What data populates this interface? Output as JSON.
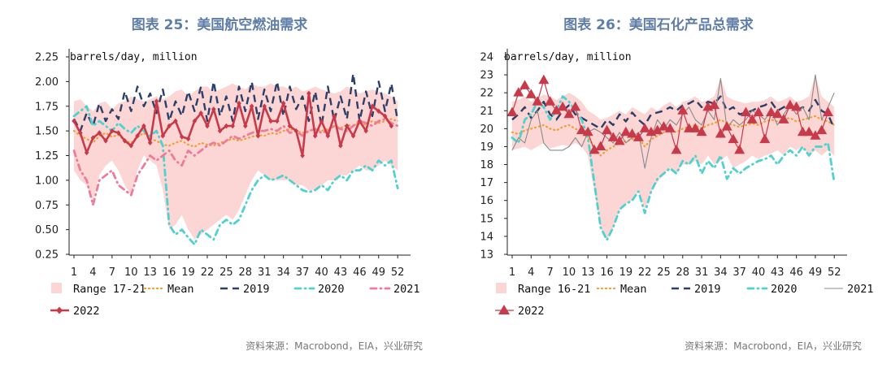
{
  "chart_data": [
    {
      "type": "line",
      "title": "图表 25：美国航空燃油需求",
      "ylabel": "barrels/day, million",
      "source": "资料来源：Macrobond，EIA，兴业研究",
      "ylim": [
        0.25,
        2.25
      ],
      "yticks": [
        "0.25",
        "0.50",
        "0.75",
        "1.00",
        "1.25",
        "1.50",
        "1.75",
        "2.00",
        "2.25"
      ],
      "yticks_values": [
        0.25,
        0.5,
        0.75,
        1.0,
        1.25,
        1.5,
        1.75,
        2.0,
        2.25
      ],
      "xticks": [
        1,
        4,
        7,
        10,
        13,
        16,
        19,
        22,
        25,
        28,
        31,
        34,
        37,
        40,
        43,
        46,
        49,
        52
      ],
      "xlim": [
        1,
        53
      ],
      "x": [
        1,
        2,
        3,
        4,
        5,
        6,
        7,
        8,
        9,
        10,
        11,
        12,
        13,
        14,
        15,
        16,
        17,
        18,
        19,
        20,
        21,
        22,
        23,
        24,
        25,
        26,
        27,
        28,
        29,
        30,
        31,
        32,
        33,
        34,
        35,
        36,
        37,
        38,
        39,
        40,
        41,
        42,
        43,
        44,
        45,
        46,
        47,
        48,
        49,
        50,
        51,
        52
      ],
      "range_label": "Range 17-21",
      "range_low": [
        1.1,
        1.0,
        0.95,
        0.8,
        1.05,
        1.15,
        1.2,
        1.1,
        0.95,
        0.85,
        1.1,
        1.25,
        1.2,
        1.15,
        0.9,
        0.5,
        0.55,
        0.65,
        0.5,
        0.4,
        0.45,
        0.5,
        0.55,
        0.6,
        0.65,
        0.6,
        0.7,
        0.85,
        1.0,
        1.1,
        1.05,
        1.0,
        1.0,
        1.0,
        1.0,
        0.95,
        0.95,
        0.9,
        0.9,
        0.95,
        1.0,
        1.0,
        1.05,
        1.05,
        1.1,
        1.15,
        1.1,
        1.1,
        1.15,
        1.2,
        1.15,
        1.1
      ],
      "range_high": [
        1.8,
        1.82,
        1.75,
        1.7,
        1.78,
        1.8,
        1.72,
        1.78,
        1.8,
        1.85,
        1.82,
        1.8,
        1.82,
        1.85,
        1.82,
        1.85,
        1.9,
        1.92,
        1.85,
        1.9,
        1.95,
        1.95,
        1.9,
        1.92,
        1.95,
        1.98,
        1.95,
        1.92,
        1.98,
        1.95,
        1.95,
        1.98,
        1.95,
        1.95,
        1.92,
        1.95,
        1.9,
        1.92,
        1.95,
        1.92,
        1.9,
        1.88,
        1.9,
        1.95,
        1.92,
        1.88,
        1.9,
        1.92,
        1.9,
        1.88,
        1.85,
        1.8
      ],
      "series": [
        {
          "name": "Mean",
          "color": "#f0a030",
          "style": "dotted-fine",
          "values": [
            1.5,
            1.45,
            1.42,
            1.38,
            1.45,
            1.48,
            1.44,
            1.46,
            1.4,
            1.38,
            1.44,
            1.48,
            1.42,
            1.4,
            1.36,
            1.35,
            1.38,
            1.4,
            1.36,
            1.34,
            1.38,
            1.36,
            1.35,
            1.38,
            1.4,
            1.42,
            1.4,
            1.42,
            1.44,
            1.46,
            1.45,
            1.48,
            1.47,
            1.5,
            1.52,
            1.5,
            1.48,
            1.5,
            1.52,
            1.5,
            1.52,
            1.55,
            1.53,
            1.56,
            1.55,
            1.58,
            1.56,
            1.6,
            1.58,
            1.6,
            1.62,
            1.6
          ]
        },
        {
          "name": "2019",
          "color": "#2c3e6a",
          "style": "dashed",
          "values": [
            1.62,
            1.5,
            1.68,
            1.55,
            1.78,
            1.6,
            1.72,
            1.62,
            1.9,
            1.7,
            1.95,
            1.75,
            1.88,
            1.68,
            1.92,
            1.6,
            1.8,
            1.65,
            1.9,
            1.7,
            1.95,
            1.6,
            2.0,
            1.65,
            1.85,
            1.6,
            1.95,
            1.7,
            2.0,
            1.62,
            1.92,
            1.7,
            2.0,
            1.65,
            1.95,
            1.72,
            1.85,
            1.6,
            1.9,
            1.55,
            1.95,
            1.6,
            1.85,
            1.62,
            2.08,
            1.6,
            1.9,
            1.65,
            2.0,
            1.7,
            1.98,
            1.6
          ]
        },
        {
          "name": "2020",
          "color": "#4fd1d0",
          "style": "dashdot",
          "values": [
            1.65,
            1.7,
            1.75,
            1.55,
            1.6,
            1.55,
            1.5,
            1.58,
            1.52,
            1.48,
            1.55,
            1.5,
            1.45,
            1.5,
            1.35,
            0.55,
            0.45,
            0.5,
            0.42,
            0.35,
            0.5,
            0.45,
            0.4,
            0.55,
            0.6,
            0.55,
            0.6,
            0.75,
            0.9,
            1.0,
            1.05,
            1.0,
            1.02,
            1.05,
            1.0,
            0.95,
            0.9,
            0.88,
            0.9,
            0.95,
            0.9,
            1.0,
            1.05,
            1.0,
            1.1,
            1.1,
            1.15,
            1.1,
            1.2,
            1.15,
            1.2,
            0.92
          ]
        },
        {
          "name": "2021",
          "color": "#f07a9a",
          "style": "dashdot",
          "values": [
            1.3,
            1.1,
            1.0,
            0.75,
            1.0,
            1.05,
            1.1,
            0.95,
            0.9,
            0.85,
            1.05,
            1.15,
            1.25,
            1.2,
            1.25,
            1.3,
            1.2,
            1.15,
            1.3,
            1.25,
            1.3,
            1.35,
            1.38,
            1.35,
            1.4,
            1.45,
            1.42,
            1.45,
            1.48,
            1.5,
            1.5,
            1.52,
            1.5,
            1.55,
            1.48,
            1.5,
            1.45,
            1.5,
            1.52,
            1.48,
            1.5,
            1.55,
            1.52,
            1.5,
            1.55,
            1.6,
            1.58,
            1.55,
            1.6,
            1.62,
            1.58,
            1.55
          ]
        },
        {
          "name": "2022",
          "color": "#c8394a",
          "style": "solid-marker",
          "values": [
            1.6,
            1.48,
            1.28,
            1.43,
            1.48,
            1.4,
            1.5,
            1.48,
            1.4,
            1.35,
            1.45,
            1.55,
            1.38,
            1.8,
            1.45,
            1.55,
            1.6,
            1.44,
            1.42,
            1.6,
            1.68,
            1.55,
            1.72,
            1.5,
            1.55,
            1.55,
            1.78,
            1.55,
            1.75,
            1.45,
            1.75,
            1.6,
            1.6,
            1.78,
            1.55,
            1.5,
            1.25,
            1.88,
            1.45,
            1.6,
            1.45,
            1.65,
            1.35,
            1.55,
            1.45,
            1.6,
            1.5,
            1.75,
            1.7,
            1.65,
            1.55,
            null
          ]
        }
      ],
      "legend": [
        "Range 17-21",
        "Mean",
        "2019",
        "2020",
        "2021",
        "2022"
      ]
    },
    {
      "type": "line",
      "title": "图表 26：美国石化产品总需求",
      "ylabel": "barrels/day, million",
      "source": "资料来源：Macrobond，EIA，兴业研究",
      "ylim": [
        13,
        24
      ],
      "yticks": [
        "13",
        "14",
        "15",
        "16",
        "17",
        "18",
        "19",
        "20",
        "21",
        "22",
        "23",
        "24"
      ],
      "yticks_values": [
        13,
        14,
        15,
        16,
        17,
        18,
        19,
        20,
        21,
        22,
        23,
        24
      ],
      "xticks": [
        1,
        4,
        7,
        10,
        13,
        16,
        19,
        22,
        25,
        28,
        31,
        34,
        37,
        40,
        43,
        46,
        49,
        52
      ],
      "xlim": [
        1,
        53
      ],
      "x": [
        1,
        2,
        3,
        4,
        5,
        6,
        7,
        8,
        9,
        10,
        11,
        12,
        13,
        14,
        15,
        16,
        17,
        18,
        19,
        20,
        21,
        22,
        23,
        24,
        25,
        26,
        27,
        28,
        29,
        30,
        31,
        32,
        33,
        34,
        35,
        36,
        37,
        38,
        39,
        40,
        41,
        42,
        43,
        44,
        45,
        46,
        47,
        48,
        49,
        50,
        51,
        52
      ],
      "range_label": "Range 16-21",
      "range_low": [
        18.8,
        18.9,
        19.0,
        18.8,
        19.0,
        19.2,
        18.9,
        19.0,
        19.1,
        19.0,
        19.2,
        19.0,
        18.5,
        16.5,
        14.5,
        13.8,
        14.5,
        15.5,
        15.8,
        16.0,
        16.5,
        15.5,
        16.5,
        17.0,
        17.5,
        17.8,
        17.5,
        18.0,
        18.0,
        18.2,
        18.0,
        18.5,
        18.0,
        18.2,
        18.5,
        17.8,
        18.0,
        18.2,
        18.5,
        18.3,
        18.5,
        18.6,
        18.8,
        18.5,
        19.0,
        18.8,
        19.0,
        18.5,
        18.8,
        18.5,
        18.8,
        18.5
      ],
      "range_high": [
        21.5,
        21.6,
        21.8,
        21.5,
        21.7,
        21.9,
        21.8,
        21.6,
        21.8,
        22.0,
        21.8,
        21.5,
        21.0,
        20.8,
        20.5,
        20.6,
        20.8,
        21.0,
        20.8,
        21.2,
        21.0,
        20.8,
        21.2,
        21.0,
        21.3,
        21.5,
        21.2,
        21.5,
        21.6,
        21.8,
        21.5,
        21.6,
        21.8,
        22.8,
        21.8,
        21.6,
        21.5,
        21.4,
        21.5,
        21.5,
        21.6,
        21.8,
        21.5,
        21.6,
        21.8,
        21.5,
        21.6,
        21.8,
        23.0,
        21.8,
        21.5,
        21.2
      ],
      "series": [
        {
          "name": "Mean",
          "color": "#f0a030",
          "style": "dotted-fine",
          "values": [
            19.8,
            19.7,
            19.9,
            20.0,
            20.1,
            20.2,
            20.0,
            19.9,
            20.1,
            20.2,
            20.0,
            19.8,
            19.5,
            19.0,
            18.5,
            18.8,
            19.0,
            19.2,
            19.3,
            19.4,
            19.5,
            19.0,
            19.4,
            19.6,
            19.8,
            19.9,
            19.8,
            20.0,
            20.1,
            20.2,
            20.0,
            20.2,
            20.3,
            20.5,
            20.3,
            20.2,
            20.1,
            20.2,
            20.3,
            20.2,
            20.4,
            20.5,
            20.4,
            20.5,
            20.6,
            20.4,
            20.5,
            20.6,
            20.7,
            20.5,
            20.4,
            20.2
          ]
        },
        {
          "name": "2019",
          "color": "#2c3e6a",
          "style": "dashed",
          "values": [
            20.5,
            20.8,
            21.2,
            20.6,
            21.0,
            21.5,
            20.8,
            20.5,
            21.0,
            21.3,
            20.8,
            20.6,
            20.4,
            20.2,
            20.0,
            20.5,
            20.2,
            20.8,
            20.4,
            20.9,
            20.5,
            20.2,
            20.8,
            20.9,
            21.0,
            21.2,
            21.0,
            21.3,
            21.4,
            21.6,
            21.2,
            21.5,
            21.4,
            21.8,
            21.0,
            21.2,
            20.8,
            20.9,
            21.0,
            21.2,
            21.3,
            21.5,
            21.0,
            21.2,
            21.4,
            21.0,
            21.2,
            21.0,
            21.6,
            21.0,
            20.8,
            20.0
          ]
        },
        {
          "name": "2020",
          "color": "#4fd1d0",
          "style": "dashdot",
          "values": [
            19.5,
            19.2,
            20.5,
            20.8,
            21.5,
            21.2,
            20.5,
            21.0,
            21.8,
            21.5,
            21.0,
            20.5,
            19.5,
            17.0,
            14.5,
            13.8,
            14.5,
            15.5,
            15.8,
            16.0,
            16.5,
            15.3,
            16.5,
            17.2,
            17.5,
            17.8,
            17.5,
            18.2,
            18.0,
            18.5,
            17.5,
            18.2,
            17.8,
            18.5,
            17.2,
            17.8,
            17.5,
            17.8,
            18.0,
            18.2,
            18.3,
            18.5,
            18.0,
            18.5,
            18.8,
            18.5,
            19.0,
            18.5,
            19.0,
            19.0,
            19.2,
            17.0
          ]
        },
        {
          "name": "2021",
          "color": "#8a8a8a",
          "style": "thin",
          "values": [
            18.8,
            19.5,
            19.2,
            20.5,
            21.0,
            19.2,
            18.8,
            18.8,
            18.8,
            19.0,
            19.5,
            19.0,
            19.8,
            20.0,
            19.8,
            19.5,
            19.2,
            19.8,
            19.2,
            19.5,
            19.8,
            17.8,
            19.5,
            20.5,
            20.0,
            20.5,
            20.2,
            20.8,
            21.2,
            20.5,
            20.2,
            21.0,
            20.5,
            22.8,
            20.0,
            20.5,
            20.2,
            20.5,
            21.0,
            20.8,
            20.5,
            21.0,
            20.2,
            20.8,
            21.3,
            20.8,
            21.2,
            20.5,
            23.0,
            20.5,
            21.2,
            22.0
          ]
        },
        {
          "name": "2022",
          "color": "#c8394a",
          "style": "solid-triangle",
          "values": [
            20.9,
            22.0,
            22.4,
            21.9,
            21.5,
            22.7,
            21.5,
            21.0,
            21.2,
            20.8,
            21.2,
            19.9,
            19.8,
            18.8,
            19.0,
            19.9,
            19.5,
            19.3,
            19.8,
            19.7,
            19.5,
            20.0,
            19.8,
            19.9,
            20.1,
            20.0,
            18.8,
            21.0,
            20.0,
            20.0,
            19.8,
            21.2,
            21.3,
            19.7,
            20.1,
            19.4,
            18.8,
            20.9,
            20.5,
            20.9,
            19.4,
            20.9,
            20.8,
            20.5,
            21.3,
            21.2,
            19.8,
            19.8,
            19.6,
            19.9,
            20.9,
            null
          ]
        }
      ],
      "legend": [
        "Range 16-21",
        "Mean",
        "2019",
        "2020",
        "2021",
        "2022"
      ]
    }
  ]
}
